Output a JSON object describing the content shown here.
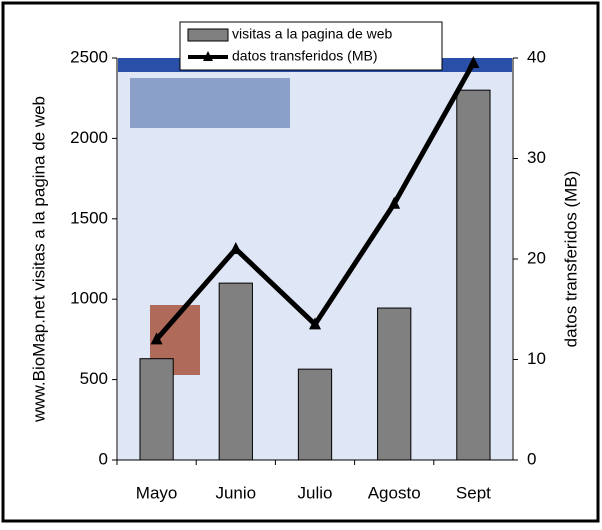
{
  "chart_data": {
    "type": "bar",
    "categories": [
      "Mayo",
      "Junio",
      "Julio",
      "Agosto",
      "Sept"
    ],
    "series": [
      {
        "name": "visitas a la pagina de web",
        "type": "bar",
        "color": "#808080",
        "values": [
          630,
          1100,
          565,
          945,
          2300
        ]
      },
      {
        "name": "datos transferidos (MB)",
        "type": "line",
        "color": "#000000",
        "axis": "y2",
        "values": [
          12,
          21,
          13.5,
          25.5,
          39.5
        ]
      }
    ],
    "ylabel": "www.BioMap.net visitas a la pagina de web",
    "y2label": "datos transferidos (MB)",
    "ylim": [
      0,
      2500
    ],
    "yticks": [
      0,
      500,
      1000,
      1500,
      2000,
      2500
    ],
    "y2lim": [
      0,
      40
    ],
    "y2ticks": [
      0,
      10,
      20,
      30,
      40
    ]
  }
}
